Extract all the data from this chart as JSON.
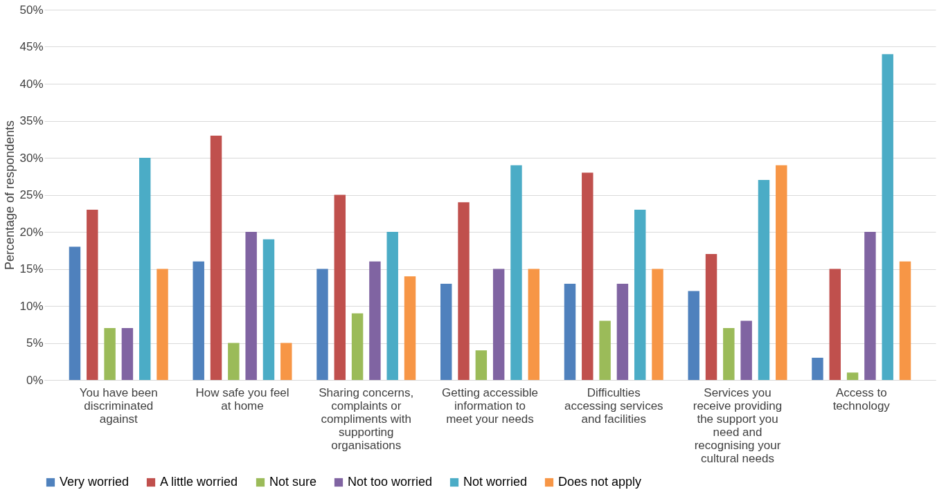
{
  "chart_data": {
    "type": "bar",
    "ylabel": "Percentage of respondents",
    "categories": [
      "You have been discriminated against",
      "How safe you feel at home",
      "Sharing concerns, complaints or compliments with supporting organisations",
      "Getting accessible information to meet your needs",
      "Difficulties accessing services and facilities",
      "Services you receive providing the support you need and recognising your cultural needs",
      "Access to technology"
    ],
    "series": [
      {
        "name": "Very worried",
        "color": "#4f81bd",
        "values": [
          18,
          16,
          15,
          13,
          13,
          12,
          3
        ]
      },
      {
        "name": "A little worried",
        "color": "#c0504d",
        "values": [
          23,
          33,
          25,
          24,
          28,
          17,
          15
        ]
      },
      {
        "name": "Not sure",
        "color": "#9bbb59",
        "values": [
          7,
          5,
          9,
          4,
          8,
          7,
          1
        ]
      },
      {
        "name": "Not too worried",
        "color": "#8064a2",
        "values": [
          7,
          20,
          16,
          15,
          13,
          8,
          20
        ]
      },
      {
        "name": "Not worried",
        "color": "#4bacc6",
        "values": [
          30,
          19,
          20,
          29,
          23,
          27,
          44
        ]
      },
      {
        "name": "Does not apply",
        "color": "#f79646",
        "values": [
          15,
          5,
          14,
          15,
          15,
          29,
          16
        ]
      }
    ],
    "ylim": [
      0,
      50
    ],
    "yticks": [
      {
        "value": 0,
        "label": "0%"
      },
      {
        "value": 5,
        "label": "5%"
      },
      {
        "value": 10,
        "label": "10%"
      },
      {
        "value": 15,
        "label": "15%"
      },
      {
        "value": 20,
        "label": "20%"
      },
      {
        "value": 25,
        "label": "25%"
      },
      {
        "value": 30,
        "label": "30%"
      },
      {
        "value": 35,
        "label": "35%"
      },
      {
        "value": 40,
        "label": "40%"
      },
      {
        "value": 45,
        "label": "45%"
      },
      {
        "value": 50,
        "label": "50%"
      }
    ],
    "grid": "y",
    "legend": "bottom"
  }
}
